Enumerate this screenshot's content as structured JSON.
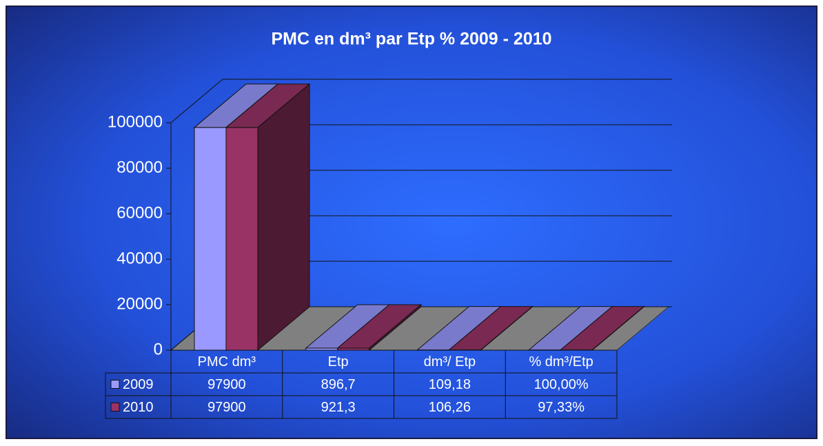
{
  "chart_data": {
    "type": "bar3d",
    "title": "PMC en dm³ par Etp % 2009 - 2010",
    "categories": [
      "PMC dm³",
      "Etp",
      "dm³/ Etp",
      "% dm³/Etp"
    ],
    "series": [
      {
        "name": "2009",
        "color": "#9999ff",
        "values": [
          97900,
          896.7,
          109.18,
          100.0
        ],
        "value_labels": [
          "97900",
          "896,7",
          "109,18",
          "100,00%"
        ]
      },
      {
        "name": "2010",
        "color": "#993366",
        "values": [
          97900,
          921.3,
          106.26,
          97.33
        ],
        "value_labels": [
          "97900",
          "921,3",
          "106,26",
          "97,33%"
        ]
      }
    ],
    "ylim": [
      0,
      100000
    ],
    "yticks": [
      0,
      20000,
      40000,
      60000,
      80000,
      100000
    ],
    "grid": true,
    "data_table": true
  }
}
